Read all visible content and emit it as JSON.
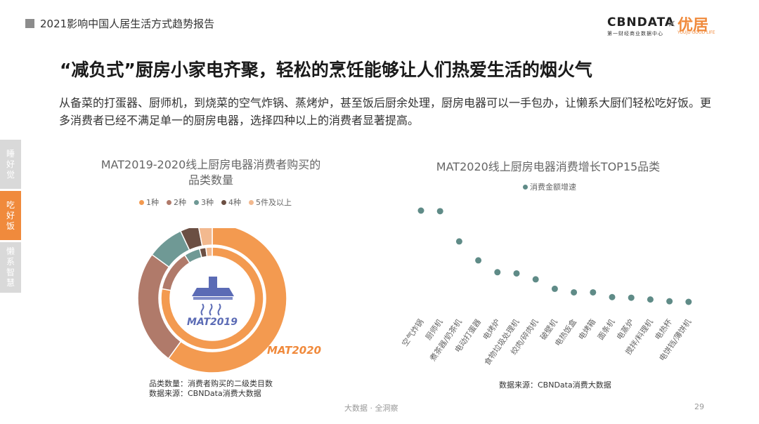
{
  "header": {
    "title": "2021影响中国人居生活方式趋势报告",
    "logo_cbn": "CBNDATA",
    "logo_cbn_sub": "第一财经商业数据中心",
    "logo_times": "×",
    "logo_youju": "优居",
    "logo_youju_sub": "YOUJU·GOOD LIFE"
  },
  "side_tabs": [
    "睡好觉",
    "吃好饭",
    "懒系智慧"
  ],
  "slide": {
    "title": "“减负式”厨房小家电齐聚，轻松的烹饪能够让人们热爱生活的烟火气",
    "desc": "从备菜的打蛋器、厨师机，到烧菜的空气炸锅、蒸烤炉，甚至饭后厨余处理，厨房电器可以一手包办，让懒系大厨们轻松吃好饭。更多消费者已经不满足单一的厨房电器，选择四种以上的消费者显著提高。"
  },
  "colors": {
    "orange": "#f39a50",
    "brown": "#b07a6a",
    "teal": "#6f9995",
    "dark_brown": "#6b4f43",
    "light_orange": "#f2b98f",
    "scatter": "#5f8b87",
    "accent": "#f08a3c"
  },
  "chart_data": [
    {
      "type": "donut",
      "title": "MAT2019-2020线上厨房电器消费者购买的品类数量",
      "legend": [
        "1种",
        "2种",
        "3种",
        "4种",
        "5件及以上"
      ],
      "rings": [
        {
          "name": "MAT2020",
          "values": [
            0.6,
            0.25,
            0.08,
            0.04,
            0.03
          ]
        },
        {
          "name": "MAT2019",
          "values": [
            0.78,
            0.13,
            0.05,
            0.02,
            0.02
          ]
        }
      ],
      "inner_label": "MAT2019",
      "outer_label": "MAT2020",
      "icon": "range-hood-icon",
      "notes": [
        "品类数量：消费者购买的二级类目数",
        "数据来源：CBNData消费大数据"
      ]
    },
    {
      "type": "scatter",
      "title": "MAT2020线上厨房电器消费增长TOP15品类",
      "legend": [
        "消费金额增速"
      ],
      "categories": [
        "空气炸锅",
        "厨师机",
        "煮茶器/奶茶机",
        "电动打蛋器",
        "电烤炉",
        "食物垃圾处理机",
        "绞肉/碎肉机",
        "破壁机",
        "电热饭盒",
        "电烤箱",
        "面条机",
        "电蒸炉",
        "搅拌/料理机",
        "电热杯",
        "电饼铛/薄饼机"
      ],
      "values": [
        100,
        99.5,
        74,
        58,
        48,
        47,
        42,
        34,
        31,
        31,
        27,
        26.5,
        25,
        23.5,
        23
      ],
      "ylim": [
        0,
        105
      ],
      "notes": [
        "数据来源：CBNData消费大数据"
      ]
    }
  ],
  "footer": {
    "center": "大数据 · 全洞察",
    "page": "29"
  }
}
